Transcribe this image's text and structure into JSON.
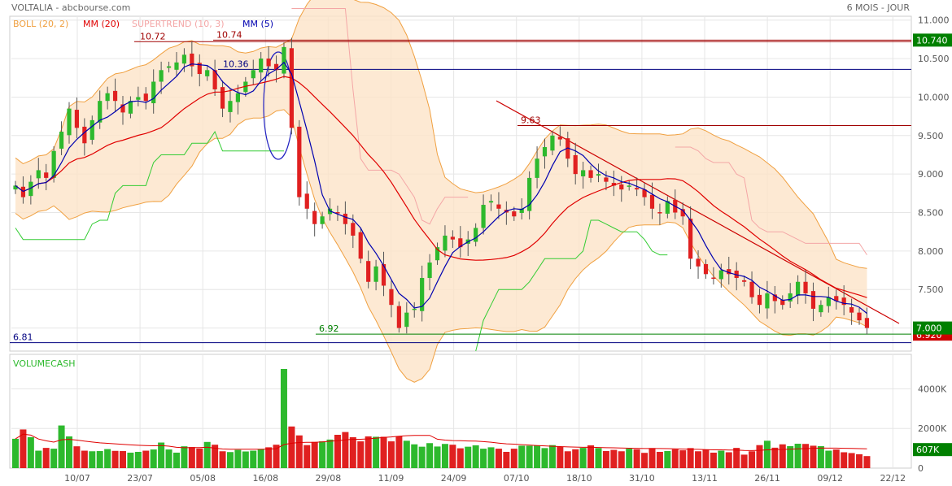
{
  "header": {
    "title": "VOLTALIA - abcbourse.com",
    "period": "6 MOIS - JOUR"
  },
  "indicators": {
    "boll": "BOLL (20, 2)",
    "mm20": "MM (20)",
    "supertrend": "SUPERTREND (10, 3)",
    "mm5": "MM (5)"
  },
  "volume_label": "VOLUMECASH",
  "colors": {
    "up": "#2db92d",
    "down": "#e02020",
    "boll_fill": "#fde3c8",
    "boll_line": "#f0a040",
    "mm20": "#e00000",
    "mm5": "#0000b0",
    "supertrend_high": "#f4a6a6",
    "supertrend_low": "#33cc33",
    "level_red": "#a00000",
    "level_blue": "#000080",
    "level_green": "#008000",
    "last_price_bg": "#008000",
    "grid": "#e6e6e6"
  },
  "price_axis": {
    "ticks": [
      "11.000",
      "10.500",
      "10.000",
      "9.500",
      "9.000",
      "8.500",
      "8.000",
      "7.500",
      "7.000"
    ],
    "last_price": "7.000",
    "hidden_price": "6.920",
    "high_marker": "10.740"
  },
  "volume_axis": {
    "ticks": [
      "4000K",
      "2000K",
      "0"
    ],
    "last_volume": "607K"
  },
  "x_axis": {
    "ticks": [
      "10/07",
      "23/07",
      "05/08",
      "16/08",
      "29/08",
      "11/09",
      "24/09",
      "07/10",
      "18/10",
      "31/10",
      "13/11",
      "26/11",
      "09/12",
      "22/12"
    ]
  },
  "annotations": {
    "level_10_72": "10.72",
    "level_10_74": "10.74",
    "level_10_36": "10.36",
    "level_9_63": "9.63",
    "level_6_92": "6.92",
    "level_6_81": "6.81"
  },
  "chart_data": {
    "type": "candlestick",
    "title": "VOLTALIA",
    "period": "6 MOIS - JOUR",
    "y_range": [
      6.7,
      11.05
    ],
    "volume_range_k": [
      0,
      5000
    ],
    "closes": [
      8.85,
      8.7,
      8.9,
      9.05,
      8.95,
      9.3,
      9.55,
      9.85,
      9.6,
      9.4,
      9.7,
      9.95,
      10.05,
      9.95,
      9.8,
      9.95,
      10.0,
      9.95,
      10.2,
      10.35,
      10.4,
      10.45,
      10.55,
      10.4,
      10.3,
      10.35,
      10.1,
      9.85,
      9.95,
      10.05,
      10.2,
      10.35,
      10.5,
      10.4,
      10.35,
      10.65,
      9.6,
      8.7,
      8.55,
      8.35,
      8.45,
      8.55,
      8.5,
      8.35,
      8.2,
      7.9,
      7.6,
      7.8,
      7.55,
      7.3,
      7.0,
      7.2,
      7.25,
      7.65,
      7.85,
      8.05,
      8.2,
      8.15,
      8.05,
      8.15,
      8.3,
      8.6,
      8.65,
      8.55,
      8.5,
      8.45,
      8.55,
      8.95,
      9.2,
      9.35,
      9.5,
      9.45,
      9.2,
      9.0,
      9.05,
      8.95,
      9.0,
      8.9,
      8.85,
      8.8,
      8.85,
      8.8,
      8.7,
      8.55,
      8.5,
      8.65,
      8.5,
      8.45,
      7.9,
      7.8,
      7.7,
      7.65,
      7.75,
      7.7,
      7.65,
      7.6,
      7.4,
      7.3,
      7.45,
      7.35,
      7.3,
      7.45,
      7.6,
      7.45,
      7.25,
      7.3,
      7.4,
      7.35,
      7.3,
      7.2,
      7.1,
      7.0
    ],
    "volumes_k": [
      1480,
      1950,
      1560,
      880,
      1020,
      980,
      2150,
      1600,
      1100,
      880,
      850,
      860,
      960,
      870,
      860,
      780,
      820,
      880,
      940,
      1290,
      940,
      780,
      1100,
      1060,
      990,
      1320,
      1180,
      850,
      810,
      920,
      840,
      880,
      950,
      1050,
      1180,
      5000,
      2100,
      1650,
      1160,
      1320,
      1350,
      1440,
      1680,
      1820,
      1560,
      1350,
      1600,
      1580,
      1580,
      1350,
      1600,
      1380,
      1200,
      1080,
      1260,
      1090,
      1220,
      1180,
      1000,
      1080,
      1150,
      980,
      1050,
      980,
      820,
      980,
      1130,
      1130,
      1150,
      1010,
      1160,
      1080,
      850,
      950,
      1020,
      1150,
      1010,
      860,
      920,
      850,
      980,
      950,
      770,
      1010,
      820,
      860,
      950,
      900,
      1010,
      850,
      930,
      780,
      880,
      800,
      1020,
      680,
      850,
      1160,
      1380,
      1030,
      1200,
      1110,
      1230,
      1220,
      1130,
      1110,
      880,
      940,
      800,
      760,
      700,
      607
    ],
    "mm20_last": 7.2,
    "levels": [
      10.72,
      10.74,
      10.36,
      9.63,
      6.92,
      6.81
    ]
  }
}
